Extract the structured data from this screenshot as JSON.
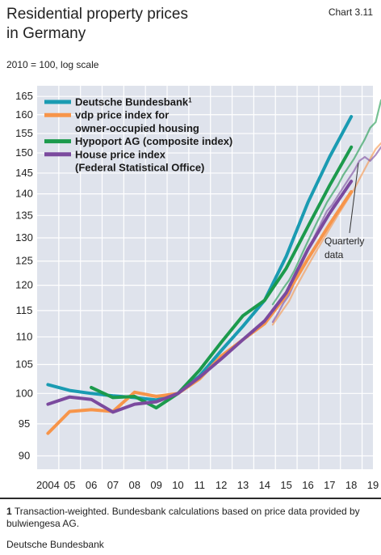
{
  "header": {
    "title_line1": "Residential property prices",
    "title_line2": "in Germany",
    "chart_number": "Chart 3.11",
    "subtitle": "2010 = 100, log scale"
  },
  "annotation": {
    "line1": "Quarterly",
    "line2": "data"
  },
  "footnote": {
    "marker": "1",
    "text": "Transaction-weighted. Bundesbank calculations based on price data provided by bulwiengesa AG."
  },
  "source": "Deutsche Bundesbank",
  "chart_data": {
    "type": "line",
    "title": "Residential property prices in Germany",
    "subtitle": "2010 = 100, log scale",
    "y_scale": "log",
    "ylim": [
      88,
      168
    ],
    "yticks": [
      90,
      95,
      100,
      105,
      110,
      115,
      120,
      125,
      130,
      135,
      140,
      145,
      150,
      155,
      160,
      165
    ],
    "x_tick_labels": [
      "2004",
      "05",
      "06",
      "07",
      "08",
      "09",
      "10",
      "11",
      "12",
      "13",
      "14",
      "15",
      "16",
      "17",
      "18",
      "19"
    ],
    "background": "#dfe3ec",
    "grid": true,
    "legend_position": "top-left",
    "series": [
      {
        "name": "Deutsche Bundesbank",
        "name_superscript": "1",
        "color": "#1a9bb2",
        "annual": [
          [
            2004,
            101.5
          ],
          [
            2005,
            100.5
          ],
          [
            2006,
            100.0
          ],
          [
            2007,
            99.6
          ],
          [
            2008,
            99.3
          ],
          [
            2009,
            98.9
          ],
          [
            2010,
            100.0
          ],
          [
            2011,
            103.0
          ],
          [
            2012,
            107.5
          ],
          [
            2013,
            112.0
          ],
          [
            2014,
            117.0
          ],
          [
            2015,
            126.0
          ],
          [
            2016,
            138.0
          ],
          [
            2017,
            149.0
          ],
          [
            2018,
            159.5
          ]
        ],
        "quarterly": []
      },
      {
        "name": "vdp price index for owner-occupied housing",
        "color": "#f7954a",
        "annual": [
          [
            2004,
            93.5
          ],
          [
            2005,
            97.0
          ],
          [
            2006,
            97.3
          ],
          [
            2007,
            97.0
          ],
          [
            2008,
            100.2
          ],
          [
            2009,
            99.5
          ],
          [
            2010,
            100.0
          ],
          [
            2011,
            102.5
          ],
          [
            2012,
            106.5
          ],
          [
            2013,
            109.5
          ],
          [
            2014,
            112.5
          ],
          [
            2015,
            118.0
          ],
          [
            2016,
            125.5
          ],
          [
            2017,
            133.0
          ],
          [
            2018,
            140.5
          ]
        ],
        "quarterly": [
          [
            2014.375,
            112.3
          ],
          [
            2014.625,
            113.8
          ],
          [
            2014.875,
            115.3
          ],
          [
            2015.125,
            116.8
          ],
          [
            2015.375,
            119.0
          ],
          [
            2015.625,
            121.0
          ],
          [
            2015.875,
            123.0
          ],
          [
            2016.125,
            125.0
          ],
          [
            2016.375,
            127.0
          ],
          [
            2016.625,
            129.0
          ],
          [
            2016.875,
            131.0
          ],
          [
            2017.125,
            133.0
          ],
          [
            2017.375,
            135.0
          ],
          [
            2017.625,
            137.0
          ],
          [
            2017.875,
            139.0
          ],
          [
            2018.125,
            141.0
          ],
          [
            2018.375,
            143.5
          ],
          [
            2018.625,
            146.0
          ],
          [
            2018.875,
            148.5
          ],
          [
            2019.125,
            151.0
          ],
          [
            2019.375,
            152.5
          ]
        ]
      },
      {
        "name": "Hypoport AG (composite index)",
        "color": "#1c9a4c",
        "annual": [
          [
            2006,
            101.0
          ],
          [
            2007,
            99.3
          ],
          [
            2008,
            99.5
          ],
          [
            2009,
            97.6
          ],
          [
            2010,
            100.0
          ],
          [
            2011,
            104.0
          ],
          [
            2012,
            109.0
          ],
          [
            2013,
            114.0
          ],
          [
            2014,
            117.0
          ],
          [
            2015,
            123.5
          ],
          [
            2016,
            132.5
          ],
          [
            2017,
            142.0
          ],
          [
            2018,
            151.5
          ]
        ],
        "quarterly": [
          [
            2014.375,
            116.2
          ],
          [
            2014.625,
            117.8
          ],
          [
            2014.875,
            119.5
          ],
          [
            2015.125,
            121.0
          ],
          [
            2015.375,
            123.0
          ],
          [
            2015.625,
            125.5
          ],
          [
            2015.875,
            128.0
          ],
          [
            2016.125,
            130.5
          ],
          [
            2016.375,
            133.0
          ],
          [
            2016.625,
            135.5
          ],
          [
            2016.875,
            138.0
          ],
          [
            2017.125,
            140.0
          ],
          [
            2017.375,
            142.0
          ],
          [
            2017.625,
            144.5
          ],
          [
            2017.875,
            146.5
          ],
          [
            2018.125,
            148.5
          ],
          [
            2018.375,
            151.0
          ],
          [
            2018.625,
            153.5
          ],
          [
            2018.875,
            156.5
          ],
          [
            2019.125,
            158.0
          ],
          [
            2019.375,
            164.0
          ]
        ]
      },
      {
        "name": "House price index (Federal Statistical Office)",
        "color": "#7b4a9e",
        "annual": [
          [
            2004,
            98.2
          ],
          [
            2005,
            99.4
          ],
          [
            2006,
            99.0
          ],
          [
            2007,
            96.9
          ],
          [
            2008,
            98.2
          ],
          [
            2009,
            98.6
          ],
          [
            2010,
            100.0
          ],
          [
            2011,
            102.8
          ],
          [
            2012,
            106.0
          ],
          [
            2013,
            109.5
          ],
          [
            2014,
            113.0
          ],
          [
            2015,
            118.5
          ],
          [
            2016,
            127.5
          ],
          [
            2017,
            135.5
          ],
          [
            2018,
            143.0
          ]
        ],
        "quarterly": [
          [
            2014.375,
            112.8
          ],
          [
            2014.625,
            114.5
          ],
          [
            2014.875,
            116.5
          ],
          [
            2015.125,
            118.0
          ],
          [
            2015.375,
            120.5
          ],
          [
            2015.625,
            123.5
          ],
          [
            2015.875,
            126.0
          ],
          [
            2016.125,
            128.5
          ],
          [
            2016.375,
            131.0
          ],
          [
            2016.625,
            133.5
          ],
          [
            2016.875,
            136.0
          ],
          [
            2017.125,
            137.5
          ],
          [
            2017.375,
            139.5
          ],
          [
            2017.625,
            141.5
          ],
          [
            2017.875,
            143.5
          ],
          [
            2018.125,
            145.5
          ],
          [
            2018.375,
            148.0
          ],
          [
            2018.625,
            149.0
          ],
          [
            2018.875,
            148.0
          ],
          [
            2019.125,
            149.5
          ],
          [
            2019.375,
            151.5
          ]
        ]
      }
    ]
  }
}
